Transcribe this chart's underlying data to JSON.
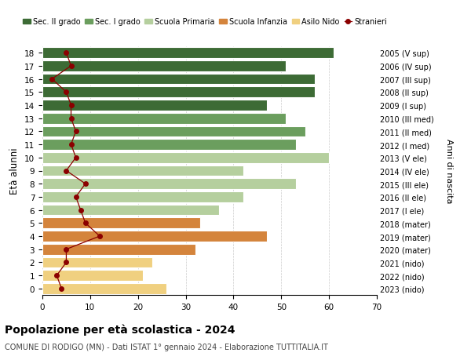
{
  "ages": [
    18,
    17,
    16,
    15,
    14,
    13,
    12,
    11,
    10,
    9,
    8,
    7,
    6,
    5,
    4,
    3,
    2,
    1,
    0
  ],
  "right_labels": [
    "2005 (V sup)",
    "2006 (IV sup)",
    "2007 (III sup)",
    "2008 (II sup)",
    "2009 (I sup)",
    "2010 (III med)",
    "2011 (II med)",
    "2012 (I med)",
    "2013 (V ele)",
    "2014 (IV ele)",
    "2015 (III ele)",
    "2016 (II ele)",
    "2017 (I ele)",
    "2018 (mater)",
    "2019 (mater)",
    "2020 (mater)",
    "2021 (nido)",
    "2022 (nido)",
    "2023 (nido)"
  ],
  "bar_values": [
    61,
    51,
    57,
    57,
    47,
    51,
    55,
    53,
    60,
    42,
    53,
    42,
    37,
    33,
    47,
    32,
    23,
    21,
    26
  ],
  "bar_colors": [
    "#3d6b35",
    "#3d6b35",
    "#3d6b35",
    "#3d6b35",
    "#3d6b35",
    "#6b9e5e",
    "#6b9e5e",
    "#6b9e5e",
    "#b5cf9e",
    "#b5cf9e",
    "#b5cf9e",
    "#b5cf9e",
    "#b5cf9e",
    "#d4843c",
    "#d4843c",
    "#d4843c",
    "#f0d080",
    "#f0d080",
    "#f0d080"
  ],
  "stranieri_values": [
    5,
    6,
    2,
    5,
    6,
    6,
    7,
    6,
    7,
    5,
    9,
    7,
    8,
    9,
    12,
    5,
    5,
    3,
    4
  ],
  "legend_items": [
    {
      "label": "Sec. II grado",
      "color": "#3d6b35"
    },
    {
      "label": "Sec. I grado",
      "color": "#6b9e5e"
    },
    {
      "label": "Scuola Primaria",
      "color": "#b5cf9e"
    },
    {
      "label": "Scuola Infanzia",
      "color": "#d4843c"
    },
    {
      "label": "Asilo Nido",
      "color": "#f0d080"
    }
  ],
  "stranieri_color": "#8b0000",
  "stranieri_label": "Stranieri",
  "ylabel": "Età alunni",
  "right_ylabel": "Anni di nascita",
  "title": "Popolazione per età scolastica - 2024",
  "subtitle": "COMUNE DI RODIGO (MN) - Dati ISTAT 1° gennaio 2024 - Elaborazione TUTTITALIA.IT",
  "xlim": [
    0,
    70
  ],
  "xticks": [
    0,
    10,
    20,
    30,
    40,
    50,
    60,
    70
  ],
  "ylim": [
    -0.5,
    18.5
  ],
  "bg_color": "#ffffff",
  "grid_color": "#cccccc",
  "bar_height": 0.82
}
